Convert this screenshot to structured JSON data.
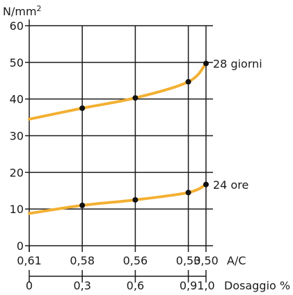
{
  "chart_data": {
    "type": "line",
    "unit_label": "N/mm",
    "unit_superscript": "2",
    "y_ticks": [
      "0",
      "10",
      "20",
      "30",
      "40",
      "50",
      "60"
    ],
    "ylim": [
      0,
      60
    ],
    "x_ac_ticks": [
      "0,61",
      "0,58",
      "0,56",
      "0,53",
      "0,50"
    ],
    "x_ac_label": "A/C",
    "x_dosage_ticks": [
      "0",
      "0,3",
      "0,6",
      "0,9",
      "1,0"
    ],
    "x_dosage_label": "Dosaggio %",
    "x_dosage_values": [
      0,
      0.3,
      0.6,
      0.9,
      1.0
    ],
    "grid": true,
    "series_color": "#f3b033",
    "series": [
      {
        "name": "28 giorni",
        "x": [
          0,
          0.3,
          0.6,
          0.9,
          1.0
        ],
        "y": [
          34.5,
          37.5,
          40.3,
          44.7,
          49.7
        ],
        "markers": [
          false,
          true,
          true,
          true,
          true
        ]
      },
      {
        "name": "24 ore",
        "x": [
          0,
          0.3,
          0.6,
          0.9,
          1.0
        ],
        "y": [
          8.8,
          11.0,
          12.5,
          14.5,
          16.7
        ],
        "markers": [
          false,
          true,
          true,
          true,
          true
        ]
      }
    ]
  }
}
